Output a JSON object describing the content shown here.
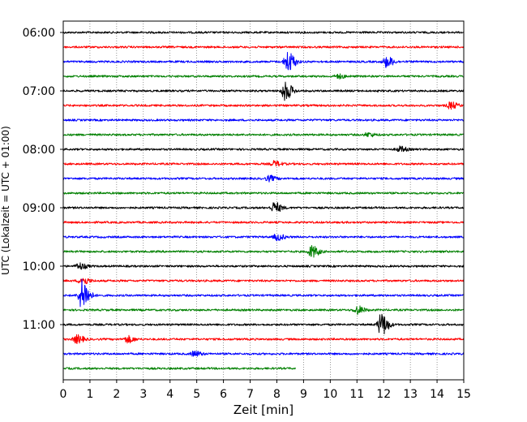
{
  "chart_data": {
    "type": "line",
    "title": "",
    "xlabel": "Zeit  [min]",
    "ylabel": "UTC (Lokalzeit = UTC + 01:00)",
    "xlim": [
      0,
      15
    ],
    "x_ticks": [
      "0",
      "1",
      "2",
      "3",
      "4",
      "5",
      "6",
      "7",
      "8",
      "9",
      "10",
      "11",
      "12",
      "13",
      "14",
      "15"
    ],
    "y_tick_labels": [
      "06:00",
      "07:00",
      "08:00",
      "09:00",
      "10:00",
      "11:00"
    ],
    "traces_per_hour": 4,
    "trace_minutes": 15,
    "grid": "vertical-dotted",
    "legend": "none",
    "trace_colors": [
      "#000000",
      "#ff0000",
      "#0000ff",
      "#008000"
    ],
    "traces": [
      {
        "time": "06:00",
        "color": "#000000",
        "end_min": 15,
        "events": []
      },
      {
        "time": "06:15",
        "color": "#ff0000",
        "end_min": 15,
        "events": []
      },
      {
        "time": "06:30",
        "color": "#0000ff",
        "end_min": 15,
        "events": [
          {
            "min": 8.4,
            "amp": 1.6
          },
          {
            "min": 12.1,
            "amp": 0.8
          }
        ]
      },
      {
        "time": "06:45",
        "color": "#008000",
        "end_min": 15,
        "events": [
          {
            "min": 10.3,
            "amp": 0.3
          }
        ]
      },
      {
        "time": "07:00",
        "color": "#000000",
        "end_min": 15,
        "events": [
          {
            "min": 8.3,
            "amp": 1.4
          }
        ]
      },
      {
        "time": "07:15",
        "color": "#ff0000",
        "end_min": 15,
        "events": [
          {
            "min": 14.5,
            "amp": 0.5
          }
        ]
      },
      {
        "time": "07:30",
        "color": "#0000ff",
        "end_min": 15,
        "events": []
      },
      {
        "time": "07:45",
        "color": "#008000",
        "end_min": 15,
        "events": [
          {
            "min": 11.4,
            "amp": 0.3
          }
        ]
      },
      {
        "time": "08:00",
        "color": "#000000",
        "end_min": 15,
        "events": [
          {
            "min": 12.6,
            "amp": 0.4
          }
        ]
      },
      {
        "time": "08:15",
        "color": "#ff0000",
        "end_min": 15,
        "events": [
          {
            "min": 7.9,
            "amp": 0.4
          }
        ]
      },
      {
        "time": "08:30",
        "color": "#0000ff",
        "end_min": 15,
        "events": [
          {
            "min": 7.7,
            "amp": 0.4
          }
        ]
      },
      {
        "time": "08:45",
        "color": "#008000",
        "end_min": 15,
        "events": []
      },
      {
        "time": "09:00",
        "color": "#000000",
        "end_min": 15,
        "events": [
          {
            "min": 7.9,
            "amp": 0.8
          }
        ]
      },
      {
        "time": "09:15",
        "color": "#ff0000",
        "end_min": 15,
        "events": []
      },
      {
        "time": "09:30",
        "color": "#0000ff",
        "end_min": 15,
        "events": [
          {
            "min": 8.0,
            "amp": 0.5
          }
        ]
      },
      {
        "time": "09:45",
        "color": "#008000",
        "end_min": 15,
        "events": [
          {
            "min": 9.3,
            "amp": 0.9
          }
        ]
      },
      {
        "time": "10:00",
        "color": "#000000",
        "end_min": 15,
        "events": [
          {
            "min": 0.6,
            "amp": 0.5
          }
        ]
      },
      {
        "time": "10:15",
        "color": "#ff0000",
        "end_min": 15,
        "events": [
          {
            "min": 0.7,
            "amp": 0.6
          }
        ]
      },
      {
        "time": "10:30",
        "color": "#0000ff",
        "end_min": 15,
        "events": [
          {
            "min": 0.7,
            "amp": 2.4
          }
        ]
      },
      {
        "time": "10:45",
        "color": "#008000",
        "end_min": 15,
        "events": [
          {
            "min": 11.0,
            "amp": 0.6
          }
        ]
      },
      {
        "time": "11:00",
        "color": "#000000",
        "end_min": 15,
        "events": [
          {
            "min": 11.9,
            "amp": 1.7
          }
        ]
      },
      {
        "time": "11:15",
        "color": "#ff0000",
        "end_min": 15,
        "events": [
          {
            "min": 0.5,
            "amp": 0.6
          },
          {
            "min": 2.4,
            "amp": 0.5
          }
        ]
      },
      {
        "time": "11:30",
        "color": "#0000ff",
        "end_min": 15,
        "events": [
          {
            "min": 4.9,
            "amp": 0.4
          }
        ]
      },
      {
        "time": "11:45",
        "color": "#008000",
        "end_min": 8.7,
        "events": []
      }
    ]
  }
}
